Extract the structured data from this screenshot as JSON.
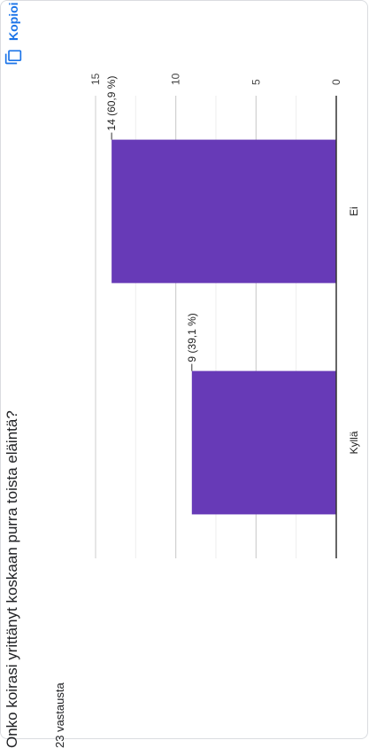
{
  "question": "Onko koirasi yrittänyt koskaan purra toista eläintä?",
  "responses": "23 vastausta",
  "copy_label": "Kopioi",
  "colors": {
    "bar": "#673ab7",
    "accent": "#1a73e8",
    "grid": "#e0e0e0",
    "axis": "#333333",
    "text": "#202124"
  },
  "chart_data": {
    "type": "bar",
    "orientation": "vertical-in-rotated-screenshot",
    "categories": [
      "Kyllä",
      "Ei"
    ],
    "values": [
      9,
      14
    ],
    "data_labels": [
      "9 (39,1 %)",
      "14 (60,9 %)"
    ],
    "title": "",
    "xlabel": "",
    "ylabel": "",
    "ylim": [
      0,
      15
    ],
    "ticks": [
      0,
      5,
      10,
      15
    ],
    "grid": true
  }
}
